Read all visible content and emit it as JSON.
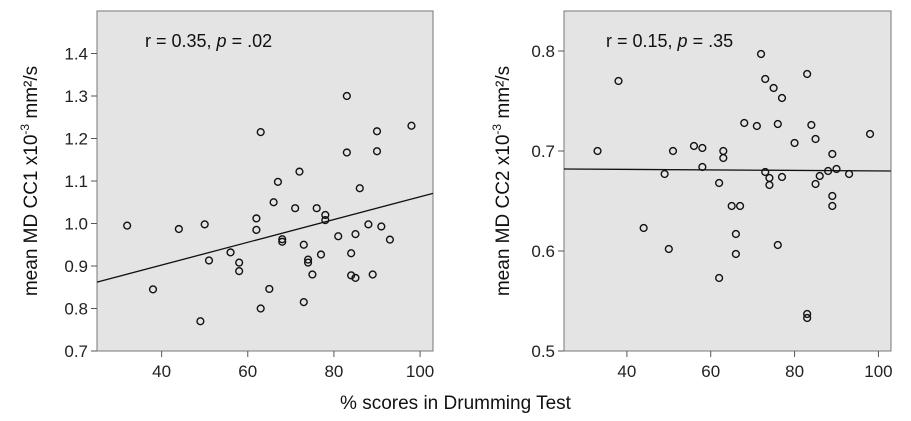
{
  "figure": {
    "shared_xlabel": "% scores in Drumming Test"
  },
  "chart_data": [
    {
      "type": "scatter",
      "title": "",
      "xlabel": "% scores in Drumming Test",
      "ylabel": "mean MD CC1 x10⁻³ mm²/s",
      "ylabel_parts": {
        "pre": "mean MD CC1 x10",
        "sup": "-3",
        "post": " mm²/s"
      },
      "annotation": {
        "r": "r = 0.35, ",
        "p_italic": "p",
        "p_rest": " = .02"
      },
      "xlim": [
        25,
        103
      ],
      "ylim": [
        0.7,
        1.5
      ],
      "x_ticks": [
        40,
        60,
        80,
        100
      ],
      "y_ticks": [
        0.7,
        0.8,
        0.9,
        1.0,
        1.1,
        1.2,
        1.3,
        1.4
      ],
      "y_tick_labels": [
        "0.7",
        "0.8",
        "0.9",
        "1.0",
        "1.1",
        "1.2",
        "1.3",
        "1.4"
      ],
      "x_tick_labels": [
        "40",
        "60",
        "80",
        "100"
      ],
      "fit_line": {
        "x": [
          25,
          103
        ],
        "y": [
          0.862,
          1.071
        ]
      },
      "points": [
        {
          "x": 32,
          "y": 0.995
        },
        {
          "x": 38,
          "y": 0.845
        },
        {
          "x": 44,
          "y": 0.987
        },
        {
          "x": 49,
          "y": 0.77
        },
        {
          "x": 50,
          "y": 0.998
        },
        {
          "x": 51,
          "y": 0.913
        },
        {
          "x": 56,
          "y": 0.932
        },
        {
          "x": 58,
          "y": 0.908
        },
        {
          "x": 58,
          "y": 0.888
        },
        {
          "x": 62,
          "y": 1.012
        },
        {
          "x": 62,
          "y": 0.985
        },
        {
          "x": 63,
          "y": 0.8
        },
        {
          "x": 63,
          "y": 1.215
        },
        {
          "x": 65,
          "y": 0.846
        },
        {
          "x": 66,
          "y": 1.05
        },
        {
          "x": 67,
          "y": 1.098
        },
        {
          "x": 68,
          "y": 0.963
        },
        {
          "x": 68,
          "y": 0.957
        },
        {
          "x": 71,
          "y": 1.036
        },
        {
          "x": 72,
          "y": 1.122
        },
        {
          "x": 73,
          "y": 0.95
        },
        {
          "x": 73,
          "y": 0.815
        },
        {
          "x": 74,
          "y": 0.915
        },
        {
          "x": 74,
          "y": 0.908
        },
        {
          "x": 75,
          "y": 0.88
        },
        {
          "x": 76,
          "y": 1.036
        },
        {
          "x": 77,
          "y": 0.927
        },
        {
          "x": 78,
          "y": 1.02
        },
        {
          "x": 78,
          "y": 1.008
        },
        {
          "x": 81,
          "y": 0.97
        },
        {
          "x": 83,
          "y": 1.3
        },
        {
          "x": 83,
          "y": 1.167
        },
        {
          "x": 84,
          "y": 0.93
        },
        {
          "x": 84,
          "y": 0.878
        },
        {
          "x": 85,
          "y": 0.872
        },
        {
          "x": 85,
          "y": 0.975
        },
        {
          "x": 86,
          "y": 1.083
        },
        {
          "x": 88,
          "y": 0.998
        },
        {
          "x": 89,
          "y": 0.88
        },
        {
          "x": 90,
          "y": 1.217
        },
        {
          "x": 90,
          "y": 1.17
        },
        {
          "x": 91,
          "y": 0.993
        },
        {
          "x": 93,
          "y": 0.962
        },
        {
          "x": 98,
          "y": 1.23
        }
      ]
    },
    {
      "type": "scatter",
      "title": "",
      "xlabel": "% scores in Drumming Test",
      "ylabel": "mean MD CC2 x10⁻³ mm²/s",
      "ylabel_parts": {
        "pre": "mean MD CC2 x10",
        "sup": "-3",
        "post": " mm²/s"
      },
      "annotation": {
        "r": "r = 0.15, ",
        "p_italic": "p",
        "p_rest": " = .35"
      },
      "xlim": [
        25,
        103
      ],
      "ylim": [
        0.5,
        0.84
      ],
      "x_ticks": [
        40,
        60,
        80,
        100
      ],
      "y_ticks": [
        0.5,
        0.6,
        0.7,
        0.8
      ],
      "y_tick_labels": [
        "0.5",
        "0.6",
        "0.7",
        "0.8"
      ],
      "x_tick_labels": [
        "40",
        "60",
        "80",
        "100"
      ],
      "fit_line": {
        "x": [
          25,
          103
        ],
        "y": [
          0.682,
          0.68
        ]
      },
      "points": [
        {
          "x": 33,
          "y": 0.7
        },
        {
          "x": 38,
          "y": 0.77
        },
        {
          "x": 44,
          "y": 0.623
        },
        {
          "x": 49,
          "y": 0.677
        },
        {
          "x": 50,
          "y": 0.602
        },
        {
          "x": 51,
          "y": 0.7
        },
        {
          "x": 56,
          "y": 0.705
        },
        {
          "x": 58,
          "y": 0.703
        },
        {
          "x": 58,
          "y": 0.684
        },
        {
          "x": 62,
          "y": 0.668
        },
        {
          "x": 62,
          "y": 0.573
        },
        {
          "x": 63,
          "y": 0.7
        },
        {
          "x": 63,
          "y": 0.693
        },
        {
          "x": 65,
          "y": 0.645
        },
        {
          "x": 66,
          "y": 0.597
        },
        {
          "x": 66,
          "y": 0.617
        },
        {
          "x": 67,
          "y": 0.645
        },
        {
          "x": 68,
          "y": 0.728
        },
        {
          "x": 71,
          "y": 0.725
        },
        {
          "x": 72,
          "y": 0.797
        },
        {
          "x": 73,
          "y": 0.772
        },
        {
          "x": 73,
          "y": 0.679
        },
        {
          "x": 74,
          "y": 0.666
        },
        {
          "x": 74,
          "y": 0.673
        },
        {
          "x": 75,
          "y": 0.763
        },
        {
          "x": 76,
          "y": 0.727
        },
        {
          "x": 76,
          "y": 0.606
        },
        {
          "x": 77,
          "y": 0.753
        },
        {
          "x": 77,
          "y": 0.674
        },
        {
          "x": 80,
          "y": 0.708
        },
        {
          "x": 83,
          "y": 0.537
        },
        {
          "x": 83,
          "y": 0.533
        },
        {
          "x": 83,
          "y": 0.777
        },
        {
          "x": 84,
          "y": 0.726
        },
        {
          "x": 85,
          "y": 0.712
        },
        {
          "x": 85,
          "y": 0.667
        },
        {
          "x": 86,
          "y": 0.675
        },
        {
          "x": 88,
          "y": 0.68
        },
        {
          "x": 89,
          "y": 0.697
        },
        {
          "x": 89,
          "y": 0.645
        },
        {
          "x": 89,
          "y": 0.655
        },
        {
          "x": 90,
          "y": 0.682
        },
        {
          "x": 93,
          "y": 0.677
        },
        {
          "x": 98,
          "y": 0.717
        }
      ]
    }
  ]
}
